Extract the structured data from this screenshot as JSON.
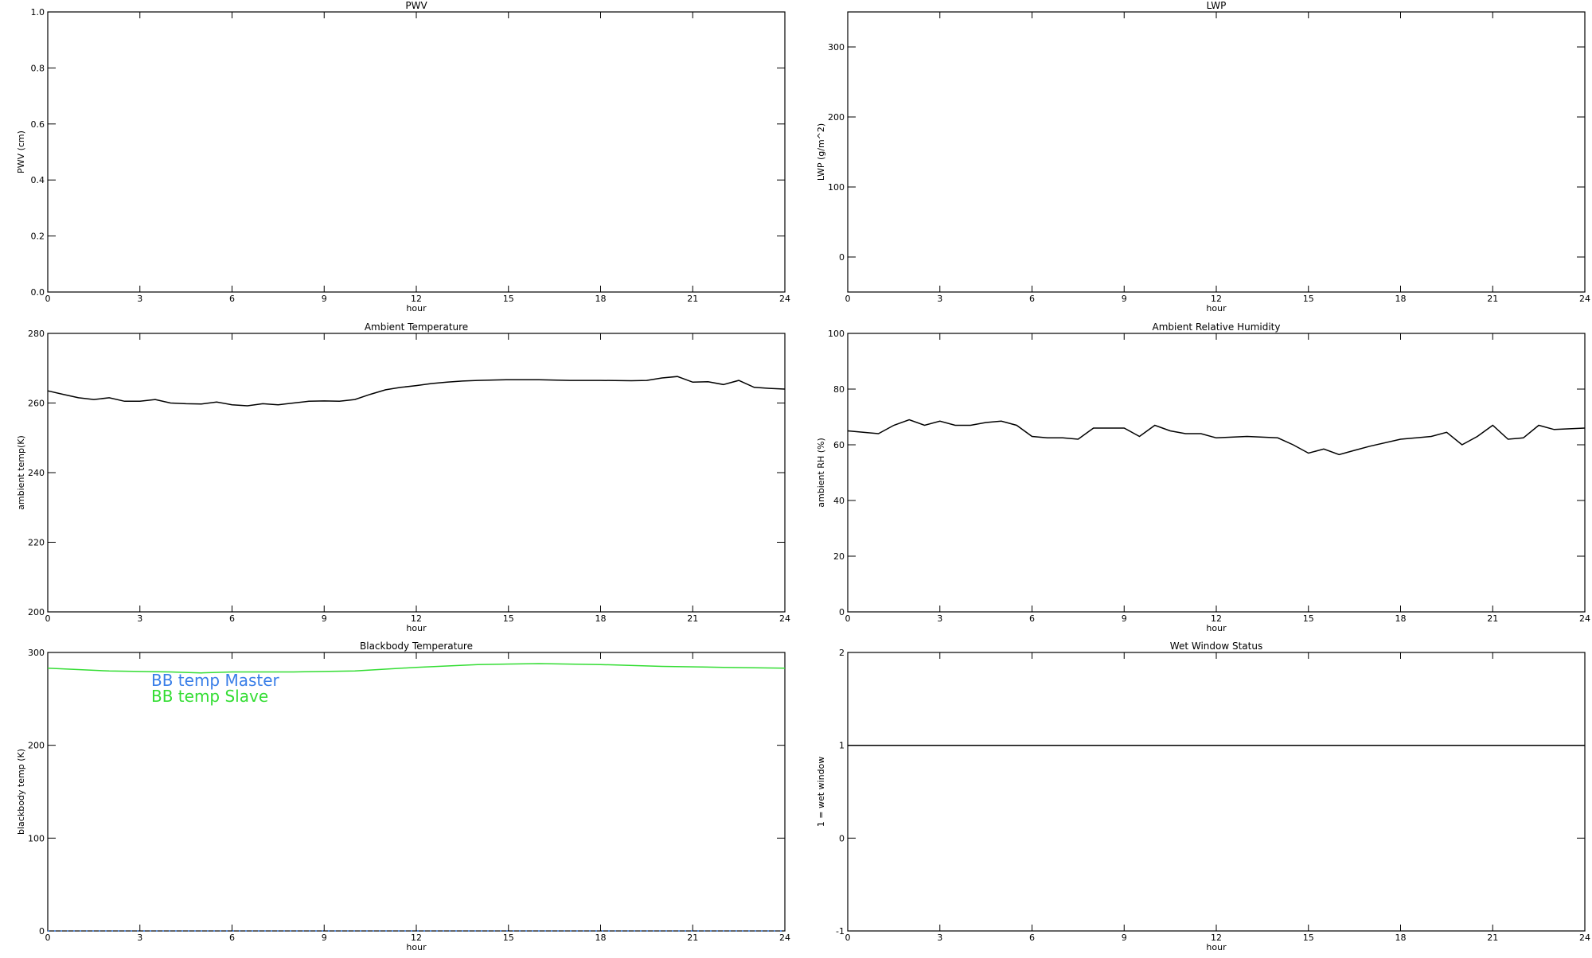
{
  "chart_data": [
    {
      "type": "line",
      "title": "PWV",
      "xlabel": "hour",
      "ylabel": "PWV (cm)",
      "xlim": [
        0,
        24
      ],
      "xticks": [
        0,
        3,
        6,
        9,
        12,
        15,
        18,
        21,
        24
      ],
      "ylim": [
        0,
        1
      ],
      "yticks": [
        {
          "value": 0,
          "label": "0.0"
        },
        {
          "value": 0.2,
          "label": "0.2"
        },
        {
          "value": 0.4,
          "label": "0.4"
        },
        {
          "value": 0.6,
          "label": "0.6"
        },
        {
          "value": 0.8,
          "label": "0.8"
        },
        {
          "value": 1,
          "label": "1.0"
        }
      ],
      "series": []
    },
    {
      "type": "line",
      "title": "LWP",
      "xlabel": "hour",
      "ylabel": "LWP (g/m^2)",
      "xlim": [
        0,
        24
      ],
      "xticks": [
        0,
        3,
        6,
        9,
        12,
        15,
        18,
        21,
        24
      ],
      "ylim": [
        -50,
        350
      ],
      "yticks": [
        0,
        100,
        200,
        300
      ],
      "series": []
    },
    {
      "type": "line",
      "title": "Ambient Temperature",
      "xlabel": "hour",
      "ylabel": "ambient temp(K)",
      "xlim": [
        0,
        24
      ],
      "xticks": [
        0,
        3,
        6,
        9,
        12,
        15,
        18,
        21,
        24
      ],
      "ylim": [
        200,
        280
      ],
      "yticks": [
        200,
        220,
        240,
        260,
        280
      ],
      "series": [
        {
          "color": "#000000",
          "x": [
            0,
            0.5,
            1,
            1.5,
            2,
            2.5,
            3,
            3.5,
            4,
            4.5,
            5,
            5.5,
            6,
            6.5,
            7,
            7.5,
            8,
            8.5,
            9,
            9.5,
            10,
            10.5,
            11,
            11.5,
            12,
            12.5,
            13,
            13.5,
            14,
            14.5,
            15,
            16,
            17,
            18,
            19,
            19.5,
            20,
            20.5,
            21,
            21.5,
            22,
            22.5,
            23,
            23.5,
            24
          ],
          "values": [
            263.5,
            262.5,
            261.5,
            261,
            261.5,
            260.5,
            260.5,
            261,
            260,
            259.8,
            259.7,
            260.3,
            259.5,
            259.2,
            259.8,
            259.5,
            260,
            260.5,
            260.6,
            260.5,
            261,
            262.5,
            263.8,
            264.5,
            265,
            265.6,
            266,
            266.3,
            266.5,
            266.6,
            266.7,
            266.7,
            266.5,
            266.5,
            266.4,
            266.5,
            267.2,
            267.6,
            266,
            266.1,
            265.3,
            266.5,
            264.5,
            264.2,
            264
          ]
        }
      ]
    },
    {
      "type": "line",
      "title": "Ambient Relative Humidity",
      "xlabel": "hour",
      "ylabel": "ambient RH (%)",
      "xlim": [
        0,
        24
      ],
      "xticks": [
        0,
        3,
        6,
        9,
        12,
        15,
        18,
        21,
        24
      ],
      "ylim": [
        0,
        100
      ],
      "yticks": [
        0,
        20,
        40,
        60,
        80,
        100
      ],
      "series": [
        {
          "color": "#000000",
          "x": [
            0,
            0.5,
            1,
            1.5,
            2,
            2.5,
            3,
            3.5,
            4,
            4.5,
            5,
            5.5,
            6,
            6.5,
            7,
            7.5,
            8,
            8.5,
            9,
            9.5,
            10,
            10.5,
            11,
            11.5,
            12,
            13,
            14,
            14.5,
            15,
            15.5,
            16,
            16.5,
            17,
            18,
            19,
            19.5,
            20,
            20.5,
            21,
            21.5,
            22,
            22.5,
            23,
            24
          ],
          "values": [
            65,
            64.5,
            64,
            67,
            69,
            67,
            68.5,
            67,
            67,
            68,
            68.5,
            67,
            63,
            62.5,
            62.5,
            62,
            66,
            66,
            66,
            63,
            67,
            65,
            64,
            64,
            62.5,
            63,
            62.5,
            60,
            57,
            58.5,
            56.5,
            58,
            59.5,
            62,
            63,
            64.5,
            60,
            63,
            67,
            62,
            62.5,
            67,
            65.5,
            66
          ]
        }
      ]
    },
    {
      "type": "line",
      "title": "Blackbody Temperature",
      "xlabel": "hour",
      "ylabel": "blackbody temp (K)",
      "xlim": [
        0,
        24
      ],
      "xticks": [
        0,
        3,
        6,
        9,
        12,
        15,
        18,
        21,
        24
      ],
      "ylim": [
        0,
        300
      ],
      "yticks": [
        0,
        100,
        200,
        300
      ],
      "legend": "upper left",
      "series": [
        {
          "name": "BB temp Master",
          "color": "#3a7fe8",
          "linestyle": "dotted",
          "x": [
            0,
            6,
            12,
            18,
            24
          ],
          "values": [
            0,
            0,
            0,
            0,
            0
          ]
        },
        {
          "name": "BB temp Slave",
          "color": "#33dd33",
          "x": [
            0,
            2,
            4,
            5,
            6,
            8,
            10,
            12,
            14,
            16,
            18,
            20,
            22,
            24
          ],
          "values": [
            283,
            280,
            279,
            278,
            279,
            279,
            280,
            284,
            287,
            288,
            287,
            285,
            284,
            283
          ]
        }
      ]
    },
    {
      "type": "line",
      "title": "Wet Window Status",
      "xlabel": "hour",
      "ylabel": "1 = wet window",
      "xlim": [
        0,
        24
      ],
      "xticks": [
        0,
        3,
        6,
        9,
        12,
        15,
        18,
        21,
        24
      ],
      "ylim": [
        -1,
        2
      ],
      "yticks": [
        -1,
        0,
        1,
        2
      ],
      "series": [
        {
          "color": "#000000",
          "x": [
            0,
            24
          ],
          "values": [
            1,
            1
          ]
        }
      ]
    }
  ]
}
